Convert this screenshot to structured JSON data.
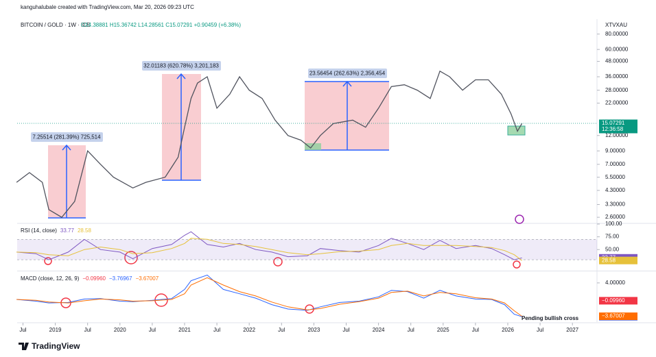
{
  "header": {
    "created": "kanguhalubale created with TradingView.com, Mar 20, 2026 09:23 UTC",
    "symbol": "BITCOIN / GOLD · 1W · ICE",
    "ohlc": "O14.38881 H15.36742 L14.28561 C15.07291 +0.90459 (+6.38%)",
    "ticker": "XTVXAU"
  },
  "measurements": [
    "7.25514 (281.39%) 725,514",
    "32.01183 (620.78%) 3,201,183",
    "23.56454 (262.63%) 2,356,454"
  ],
  "annotation": "Pending bullish cross",
  "footer": {
    "logo": "TradingView"
  },
  "chart_data": [
    {
      "type": "line",
      "log_scale": true,
      "x": [
        2018.4,
        2018.6,
        2018.8,
        2018.9,
        2019.1,
        2019.3,
        2019.5,
        2019.7,
        2019.9,
        2020.2,
        2020.4,
        2020.7,
        2020.9,
        2021.0,
        2021.1,
        2021.2,
        2021.35,
        2021.5,
        2021.7,
        2021.85,
        2022.0,
        2022.2,
        2022.4,
        2022.6,
        2022.8,
        2022.95,
        2023.1,
        2023.3,
        2023.6,
        2023.8,
        2024.0,
        2024.2,
        2024.4,
        2024.6,
        2024.8,
        2024.95,
        2025.1,
        2025.3,
        2025.5,
        2025.7,
        2025.9,
        2026.05,
        2026.15,
        2026.22
      ],
      "xlim": [
        2018.41,
        2027.38
      ],
      "ylim": [
        2.35,
        103
      ],
      "yticks": [
        {
          "value": 2.6,
          "label": "2.60000"
        },
        {
          "value": 3.3,
          "label": "3.30000"
        },
        {
          "value": 4.3,
          "label": "4.30000"
        },
        {
          "value": 5.5,
          "label": "5.50000"
        },
        {
          "value": 7,
          "label": "7.00000"
        },
        {
          "value": 9,
          "label": "9.00000"
        },
        {
          "value": 12,
          "label": "12.00000"
        },
        {
          "value": 22,
          "label": "22.00000"
        },
        {
          "value": 28,
          "label": "28.00000"
        },
        {
          "value": 36,
          "label": "36.00000"
        },
        {
          "value": 48,
          "label": "48.00000"
        },
        {
          "value": 60,
          "label": "60.00000"
        },
        {
          "value": 80,
          "label": "80.00000"
        }
      ],
      "series": [
        {
          "color": "#50535e",
          "values": [
            5.0,
            6.0,
            5.0,
            3.0,
            2.6,
            3.5,
            9.0,
            7.0,
            5.5,
            4.5,
            5.0,
            5.5,
            8,
            14,
            24,
            32,
            36,
            20,
            26,
            36,
            28,
            24,
            16,
            12,
            11,
            9.5,
            12,
            15,
            16,
            14,
            20,
            30,
            31,
            28,
            24,
            40,
            36,
            28,
            34,
            34,
            26,
            18,
            13,
            15.07291
          ],
          "last": {
            "value": 15.07291,
            "label": "15.07291",
            "color": "#089981"
          }
        }
      ],
      "countdown": "12:36:58"
    },
    {
      "type": "line",
      "title": "RSI (14, close)",
      "x": [
        2018.4,
        2018.7,
        2018.9,
        2019.2,
        2019.45,
        2019.7,
        2020.0,
        2020.2,
        2020.5,
        2020.8,
        2021.0,
        2021.1,
        2021.35,
        2021.6,
        2021.85,
        2022.1,
        2022.35,
        2022.6,
        2022.9,
        2023.1,
        2023.4,
        2023.7,
        2024.0,
        2024.2,
        2024.45,
        2024.7,
        2024.95,
        2025.2,
        2025.5,
        2025.75,
        2025.95,
        2026.1,
        2026.22
      ],
      "xlim": [
        2018.41,
        2027.38
      ],
      "ylim": [
        10,
        100
      ],
      "yticks": [
        {
          "value": 100,
          "label": "100.00"
        },
        {
          "value": 75,
          "label": "75.00"
        },
        {
          "value": 50,
          "label": "50.00"
        }
      ],
      "band": [
        30,
        70
      ],
      "series": [
        {
          "color": "#7e57c2",
          "values": [
            45,
            42,
            30,
            45,
            70,
            50,
            45,
            32,
            52,
            60,
            78,
            85,
            60,
            55,
            62,
            50,
            45,
            36,
            38,
            52,
            48,
            45,
            58,
            72,
            62,
            50,
            68,
            52,
            58,
            52,
            40,
            30,
            33.77
          ],
          "last": {
            "value": 33.77,
            "label": "33.77",
            "color": "#7e57c2"
          }
        },
        {
          "color": "#e6c13a",
          "values": [
            45,
            44,
            40,
            38,
            50,
            55,
            50,
            42,
            44,
            52,
            62,
            72,
            70,
            62,
            60,
            56,
            50,
            44,
            40,
            42,
            46,
            47,
            50,
            58,
            62,
            58,
            58,
            58,
            56,
            54,
            48,
            40,
            28.58
          ],
          "last": {
            "value": 28.58,
            "label": "28.58",
            "color": "#e6c13a"
          }
        }
      ]
    },
    {
      "type": "line",
      "title": "MACD (close, 12, 26, 9)",
      "x": [
        2018.4,
        2018.7,
        2018.9,
        2019.2,
        2019.45,
        2019.7,
        2020.0,
        2020.2,
        2020.5,
        2020.8,
        2021.0,
        2021.1,
        2021.35,
        2021.6,
        2021.85,
        2022.1,
        2022.35,
        2022.6,
        2022.9,
        2023.1,
        2023.4,
        2023.7,
        2024.0,
        2024.2,
        2024.45,
        2024.7,
        2024.95,
        2025.2,
        2025.5,
        2025.75,
        2025.95,
        2026.1,
        2026.22
      ],
      "xlim": [
        2018.41,
        2027.38
      ],
      "ylim": [
        -5,
        6.5
      ],
      "yticks": [
        {
          "value": 4,
          "label": "4.00000"
        }
      ],
      "xticks": [
        {
          "value": 2018.5,
          "label": "Jul"
        },
        2019,
        {
          "value": 2019.5,
          "label": "Jul"
        },
        2020,
        {
          "value": 2020.5,
          "label": "Jul"
        },
        2021,
        {
          "value": 2021.5,
          "label": "Jul"
        },
        2022,
        {
          "value": 2022.5,
          "label": "Jul"
        },
        2023,
        {
          "value": 2023.5,
          "label": "Jul"
        },
        2024,
        {
          "value": 2024.5,
          "label": "Jul"
        },
        2025,
        {
          "value": 2025.5,
          "label": "Jul"
        },
        2026,
        {
          "value": 2026.5,
          "label": "Jul"
        },
        2027
      ],
      "histogram_last": {
        "value": -0.0996,
        "label": "−0.09960",
        "color": "#f23645"
      },
      "series": [
        {
          "color": "#2962ff",
          "values": [
            0.2,
            -0.2,
            -0.6,
            -0.5,
            0.3,
            0.4,
            -0.2,
            -0.3,
            0,
            0.4,
            2.5,
            4.5,
            5.8,
            2.5,
            1.5,
            0.5,
            -1.0,
            -2.0,
            -2.3,
            -1.5,
            -0.5,
            -0.2,
            0.8,
            2.3,
            2.0,
            0.5,
            2.3,
            1.0,
            0.3,
            0.2,
            -1.0,
            -3.2,
            -3.76967
          ],
          "last": {
            "value": -3.76967,
            "label": "−3.76967",
            "color": "#2962ff"
          }
        },
        {
          "color": "#ff6d00",
          "values": [
            0.2,
            0,
            -0.4,
            -0.6,
            -0.1,
            0.3,
            0.1,
            -0.2,
            -0.1,
            0.2,
            1.5,
            3.5,
            5.2,
            3.5,
            2.0,
            1.0,
            -0.4,
            -1.5,
            -2.2,
            -1.9,
            -0.9,
            -0.3,
            0.5,
            1.8,
            2.1,
            1.0,
            1.8,
            1.5,
            0.6,
            0.3,
            -0.6,
            -2.4,
            -3.67007
          ],
          "last": {
            "value": -3.67007,
            "label": "−3.67007",
            "color": "#ff6d00"
          }
        }
      ]
    }
  ]
}
